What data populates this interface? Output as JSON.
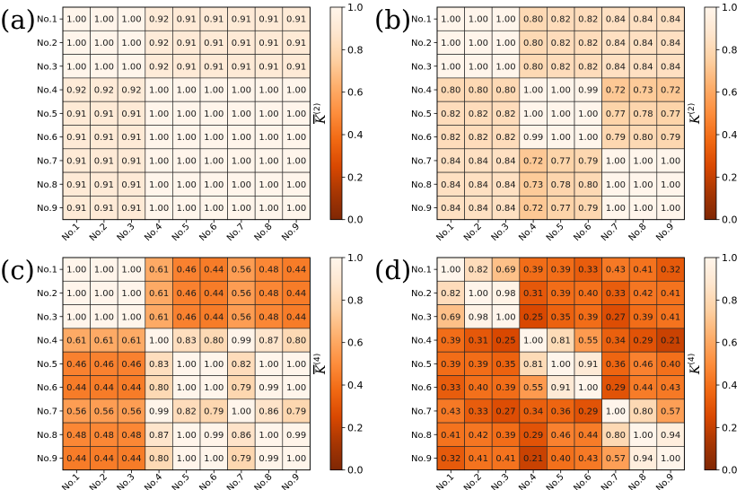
{
  "chart_data": [
    {
      "panel": "(a)",
      "type": "heatmap",
      "rows": [
        "No.1",
        "No.2",
        "No.3",
        "No.4",
        "No.5",
        "No.6",
        "No.7",
        "No.8",
        "No.9"
      ],
      "columns": [
        "No.1",
        "No.2",
        "No.3",
        "No.4",
        "No.5",
        "No.6",
        "No.7",
        "No.8",
        "No.9"
      ],
      "values": [
        [
          1.0,
          1.0,
          1.0,
          0.92,
          0.91,
          0.91,
          0.91,
          0.91,
          0.91
        ],
        [
          1.0,
          1.0,
          1.0,
          0.92,
          0.91,
          0.91,
          0.91,
          0.91,
          0.91
        ],
        [
          1.0,
          1.0,
          1.0,
          0.92,
          0.91,
          0.91,
          0.91,
          0.91,
          0.91
        ],
        [
          0.92,
          0.92,
          0.92,
          1.0,
          1.0,
          1.0,
          1.0,
          1.0,
          1.0
        ],
        [
          0.91,
          0.91,
          0.91,
          1.0,
          1.0,
          1.0,
          1.0,
          1.0,
          1.0
        ],
        [
          0.91,
          0.91,
          0.91,
          1.0,
          1.0,
          1.0,
          1.0,
          1.0,
          1.0
        ],
        [
          0.91,
          0.91,
          0.91,
          1.0,
          1.0,
          1.0,
          1.0,
          1.0,
          1.0
        ],
        [
          0.91,
          0.91,
          0.91,
          1.0,
          1.0,
          1.0,
          1.0,
          1.0,
          1.0
        ],
        [
          0.91,
          0.91,
          0.91,
          1.0,
          1.0,
          1.0,
          1.0,
          1.0,
          1.0
        ]
      ],
      "colorbar": {
        "label_base": "K",
        "label_sup": "(2)",
        "overline": true,
        "range": [
          0.0,
          1.0
        ],
        "ticks": [
          "0.0",
          "0.2",
          "0.4",
          "0.6",
          "0.8",
          "1.0"
        ]
      }
    },
    {
      "panel": "(b)",
      "type": "heatmap",
      "rows": [
        "No.1",
        "No.2",
        "No.3",
        "No.4",
        "No.5",
        "No.6",
        "No.7",
        "No.8",
        "No.9"
      ],
      "columns": [
        "No.1",
        "No.2",
        "No.3",
        "No.4",
        "No.5",
        "No.6",
        "No.7",
        "No.8",
        "No.9"
      ],
      "values": [
        [
          1.0,
          1.0,
          1.0,
          0.8,
          0.82,
          0.82,
          0.84,
          0.84,
          0.84
        ],
        [
          1.0,
          1.0,
          1.0,
          0.8,
          0.82,
          0.82,
          0.84,
          0.84,
          0.84
        ],
        [
          1.0,
          1.0,
          1.0,
          0.8,
          0.82,
          0.82,
          0.84,
          0.84,
          0.84
        ],
        [
          0.8,
          0.8,
          0.8,
          1.0,
          1.0,
          0.99,
          0.72,
          0.73,
          0.72
        ],
        [
          0.82,
          0.82,
          0.82,
          1.0,
          1.0,
          1.0,
          0.77,
          0.78,
          0.77
        ],
        [
          0.82,
          0.82,
          0.82,
          0.99,
          1.0,
          1.0,
          0.79,
          0.8,
          0.79
        ],
        [
          0.84,
          0.84,
          0.84,
          0.72,
          0.77,
          0.79,
          1.0,
          1.0,
          1.0
        ],
        [
          0.84,
          0.84,
          0.84,
          0.73,
          0.78,
          0.8,
          1.0,
          1.0,
          1.0
        ],
        [
          0.84,
          0.84,
          0.84,
          0.72,
          0.77,
          0.79,
          1.0,
          1.0,
          1.0
        ]
      ],
      "colorbar": {
        "label_base": "K",
        "label_sup": "(2)",
        "overline": false,
        "range": [
          0.0,
          1.0
        ],
        "ticks": [
          "0.0",
          "0.2",
          "0.4",
          "0.6",
          "0.8",
          "1.0"
        ]
      }
    },
    {
      "panel": "(c)",
      "type": "heatmap",
      "rows": [
        "No.1",
        "No.2",
        "No.3",
        "No.4",
        "No.5",
        "No.6",
        "No.7",
        "No.8",
        "No.9"
      ],
      "columns": [
        "No.1",
        "No.2",
        "No.3",
        "No.4",
        "No.5",
        "No.6",
        "No.7",
        "No.8",
        "No.9"
      ],
      "values": [
        [
          1.0,
          1.0,
          1.0,
          0.61,
          0.46,
          0.44,
          0.56,
          0.48,
          0.44
        ],
        [
          1.0,
          1.0,
          1.0,
          0.61,
          0.46,
          0.44,
          0.56,
          0.48,
          0.44
        ],
        [
          1.0,
          1.0,
          1.0,
          0.61,
          0.46,
          0.44,
          0.56,
          0.48,
          0.44
        ],
        [
          0.61,
          0.61,
          0.61,
          1.0,
          0.83,
          0.8,
          0.99,
          0.87,
          0.8
        ],
        [
          0.46,
          0.46,
          0.46,
          0.83,
          1.0,
          1.0,
          0.82,
          1.0,
          1.0
        ],
        [
          0.44,
          0.44,
          0.44,
          0.8,
          1.0,
          1.0,
          0.79,
          0.99,
          1.0
        ],
        [
          0.56,
          0.56,
          0.56,
          0.99,
          0.82,
          0.79,
          1.0,
          0.86,
          0.79
        ],
        [
          0.48,
          0.48,
          0.48,
          0.87,
          1.0,
          0.99,
          0.86,
          1.0,
          0.99
        ],
        [
          0.44,
          0.44,
          0.44,
          0.8,
          1.0,
          1.0,
          0.79,
          0.99,
          1.0
        ]
      ],
      "colorbar": {
        "label_base": "K",
        "label_sup": "(4)",
        "overline": true,
        "range": [
          0.0,
          1.0
        ],
        "ticks": [
          "0.0",
          "0.2",
          "0.4",
          "0.6",
          "0.8",
          "1.0"
        ]
      }
    },
    {
      "panel": "(d)",
      "type": "heatmap",
      "rows": [
        "No.1",
        "No.2",
        "No.3",
        "No.4",
        "No.5",
        "No.6",
        "No.7",
        "No.8",
        "No.9"
      ],
      "columns": [
        "No.1",
        "No.2",
        "No.3",
        "No.4",
        "No.5",
        "No.6",
        "No.7",
        "No.8",
        "No.9"
      ],
      "values": [
        [
          1.0,
          0.82,
          0.69,
          0.39,
          0.39,
          0.33,
          0.43,
          0.41,
          0.32
        ],
        [
          0.82,
          1.0,
          0.98,
          0.31,
          0.39,
          0.4,
          0.33,
          0.42,
          0.41
        ],
        [
          0.69,
          0.98,
          1.0,
          0.25,
          0.35,
          0.39,
          0.27,
          0.39,
          0.41
        ],
        [
          0.39,
          0.31,
          0.25,
          1.0,
          0.81,
          0.55,
          0.34,
          0.29,
          0.21
        ],
        [
          0.39,
          0.39,
          0.35,
          0.81,
          1.0,
          0.91,
          0.36,
          0.46,
          0.4
        ],
        [
          0.33,
          0.4,
          0.39,
          0.55,
          0.91,
          1.0,
          0.29,
          0.44,
          0.43
        ],
        [
          0.43,
          0.33,
          0.27,
          0.34,
          0.36,
          0.29,
          1.0,
          0.8,
          0.57
        ],
        [
          0.41,
          0.42,
          0.39,
          0.29,
          0.46,
          0.44,
          0.8,
          1.0,
          0.94
        ],
        [
          0.32,
          0.41,
          0.41,
          0.21,
          0.4,
          0.43,
          0.57,
          0.94,
          1.0
        ]
      ],
      "colorbar": {
        "label_base": "K",
        "label_sup": "(4)",
        "overline": false,
        "range": [
          0.0,
          1.0
        ],
        "ticks": [
          "0.0",
          "0.2",
          "0.4",
          "0.6",
          "0.8",
          "1.0"
        ]
      }
    }
  ],
  "colormap": {
    "name": "Oranges_r",
    "stops": [
      "#7f2704",
      "#a63603",
      "#d94801",
      "#f16913",
      "#fd8d3c",
      "#fdae6b",
      "#fdd0a2",
      "#fee6ce",
      "#fff5eb"
    ]
  }
}
